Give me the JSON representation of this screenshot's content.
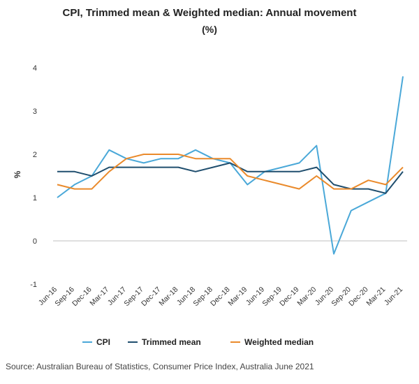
{
  "chart_data": {
    "type": "line",
    "title": "CPI, Trimmed mean & Weighted median: Annual movement",
    "subtitle": "(%)",
    "xlabel": "",
    "ylabel": "%",
    "ylim": [
      -1,
      4
    ],
    "yticks": [
      "-1",
      "0",
      "1",
      "2",
      "3",
      "4"
    ],
    "grid": false,
    "legend_position": "bottom",
    "categories": [
      "Jun-16",
      "Sep-16",
      "Dec-16",
      "Mar-17",
      "Jun-17",
      "Sep-17",
      "Dec-17",
      "Mar-18",
      "Jun-18",
      "Sep-18",
      "Dec-18",
      "Mar-19",
      "Jun-19",
      "Sep-19",
      "Dec-19",
      "Mar-20",
      "Jun-20",
      "Sep-20",
      "Dec-20",
      "Mar-21",
      "Jun-21"
    ],
    "series": [
      {
        "name": "CPI",
        "color": "#4aa8d8",
        "values": [
          1.0,
          1.3,
          1.5,
          2.1,
          1.9,
          1.8,
          1.9,
          1.9,
          2.1,
          1.9,
          1.8,
          1.3,
          1.6,
          1.7,
          1.8,
          2.2,
          -0.3,
          0.7,
          0.9,
          1.1,
          3.8
        ]
      },
      {
        "name": "Trimmed mean",
        "color": "#1f4e6e",
        "values": [
          1.6,
          1.6,
          1.5,
          1.7,
          1.7,
          1.7,
          1.7,
          1.7,
          1.6,
          1.7,
          1.8,
          1.6,
          1.6,
          1.6,
          1.6,
          1.7,
          1.3,
          1.2,
          1.2,
          1.1,
          1.6
        ]
      },
      {
        "name": "Weighted median",
        "color": "#ea8a2b",
        "values": [
          1.3,
          1.2,
          1.2,
          1.6,
          1.9,
          2.0,
          2.0,
          2.0,
          1.9,
          1.9,
          1.9,
          1.5,
          1.4,
          1.3,
          1.2,
          1.5,
          1.2,
          1.2,
          1.4,
          1.3,
          1.7
        ]
      }
    ]
  },
  "source": "Source: Australian Bureau of Statistics, Consumer Price Index, Australia June 2021"
}
